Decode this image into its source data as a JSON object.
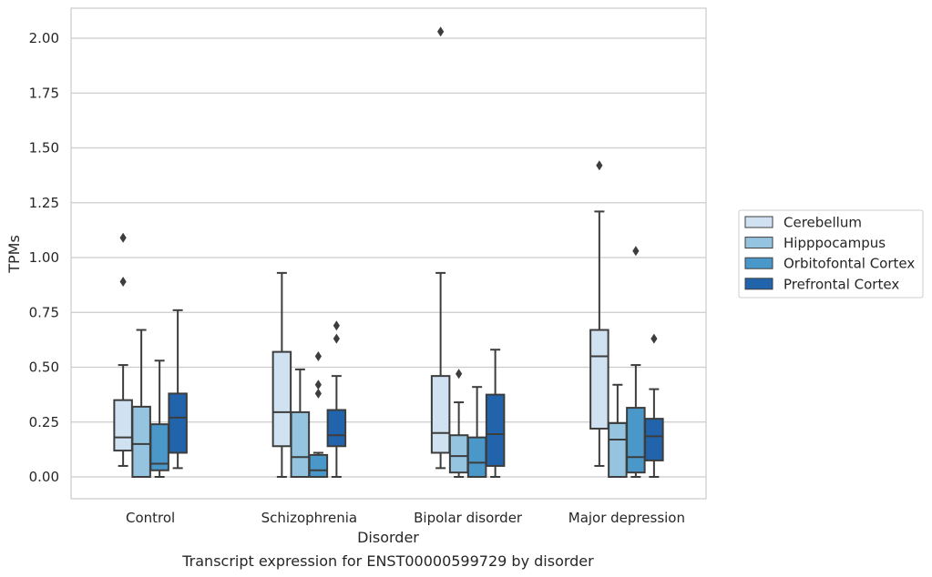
{
  "caption": "Transcript expression for ENST00000599729 by disorder",
  "chart_data": {
    "type": "box",
    "xlabel": "Disorder",
    "ylabel": "TPMs",
    "ylim": [
      -0.1,
      2.14
    ],
    "yticks": [
      "0.00",
      "0.25",
      "0.50",
      "0.75",
      "1.00",
      "1.25",
      "1.50",
      "1.75",
      "2.00"
    ],
    "ytick_values": [
      0,
      0.25,
      0.5,
      0.75,
      1.0,
      1.25,
      1.5,
      1.75,
      2.0
    ],
    "grid": "horizontal",
    "legend_position": "right",
    "categories": [
      "Control",
      "Schizophrenia",
      "Bipolar disorder",
      "Major depression"
    ],
    "series": [
      {
        "name": "Cerebellum",
        "color": "#d0e1f2",
        "boxes": [
          {
            "whislo": 0.05,
            "q1": 0.12,
            "med": 0.18,
            "q3": 0.35,
            "whishi": 0.51,
            "fliers": [
              0.89,
              1.09
            ]
          },
          {
            "whislo": 0.0,
            "q1": 0.14,
            "med": 0.295,
            "q3": 0.57,
            "whishi": 0.93,
            "fliers": []
          },
          {
            "whislo": 0.04,
            "q1": 0.11,
            "med": 0.2,
            "q3": 0.46,
            "whishi": 0.93,
            "fliers": [
              2.03
            ]
          },
          {
            "whislo": 0.05,
            "q1": 0.22,
            "med": 0.55,
            "q3": 0.67,
            "whishi": 1.21,
            "fliers": [
              1.42
            ]
          }
        ]
      },
      {
        "name": "Hipppocampus",
        "color": "#94c4df",
        "boxes": [
          {
            "whislo": 0.0,
            "q1": 0.0,
            "med": 0.15,
            "q3": 0.32,
            "whishi": 0.67,
            "fliers": []
          },
          {
            "whislo": 0.0,
            "q1": 0.0,
            "med": 0.09,
            "q3": 0.295,
            "whishi": 0.49,
            "fliers": []
          },
          {
            "whislo": 0.0,
            "q1": 0.02,
            "med": 0.095,
            "q3": 0.19,
            "whishi": 0.34,
            "fliers": [
              0.47
            ]
          },
          {
            "whislo": 0.0,
            "q1": 0.0,
            "med": 0.17,
            "q3": 0.245,
            "whishi": 0.42,
            "fliers": []
          }
        ]
      },
      {
        "name": "Orbitofontal Cortex",
        "color": "#4a98c9",
        "boxes": [
          {
            "whislo": 0.0,
            "q1": 0.03,
            "med": 0.06,
            "q3": 0.24,
            "whishi": 0.53,
            "fliers": []
          },
          {
            "whislo": 0.0,
            "q1": 0.0,
            "med": 0.03,
            "q3": 0.1,
            "whishi": 0.11,
            "fliers": [
              0.38,
              0.42,
              0.55
            ]
          },
          {
            "whislo": 0.0,
            "q1": 0.0,
            "med": 0.065,
            "q3": 0.18,
            "whishi": 0.41,
            "fliers": []
          },
          {
            "whislo": 0.0,
            "q1": 0.02,
            "med": 0.09,
            "q3": 0.315,
            "whishi": 0.51,
            "fliers": [
              1.03
            ]
          }
        ]
      },
      {
        "name": "Prefrontal Cortex",
        "color": "#2164ab",
        "boxes": [
          {
            "whislo": 0.04,
            "q1": 0.11,
            "med": 0.27,
            "q3": 0.38,
            "whishi": 0.76,
            "fliers": []
          },
          {
            "whislo": 0.0,
            "q1": 0.14,
            "med": 0.19,
            "q3": 0.305,
            "whishi": 0.46,
            "fliers": [
              0.63,
              0.69
            ]
          },
          {
            "whislo": 0.0,
            "q1": 0.05,
            "med": 0.195,
            "q3": 0.375,
            "whishi": 0.58,
            "fliers": []
          },
          {
            "whislo": 0.0,
            "q1": 0.075,
            "med": 0.185,
            "q3": 0.265,
            "whishi": 0.4,
            "fliers": [
              0.63
            ]
          }
        ]
      }
    ]
  }
}
